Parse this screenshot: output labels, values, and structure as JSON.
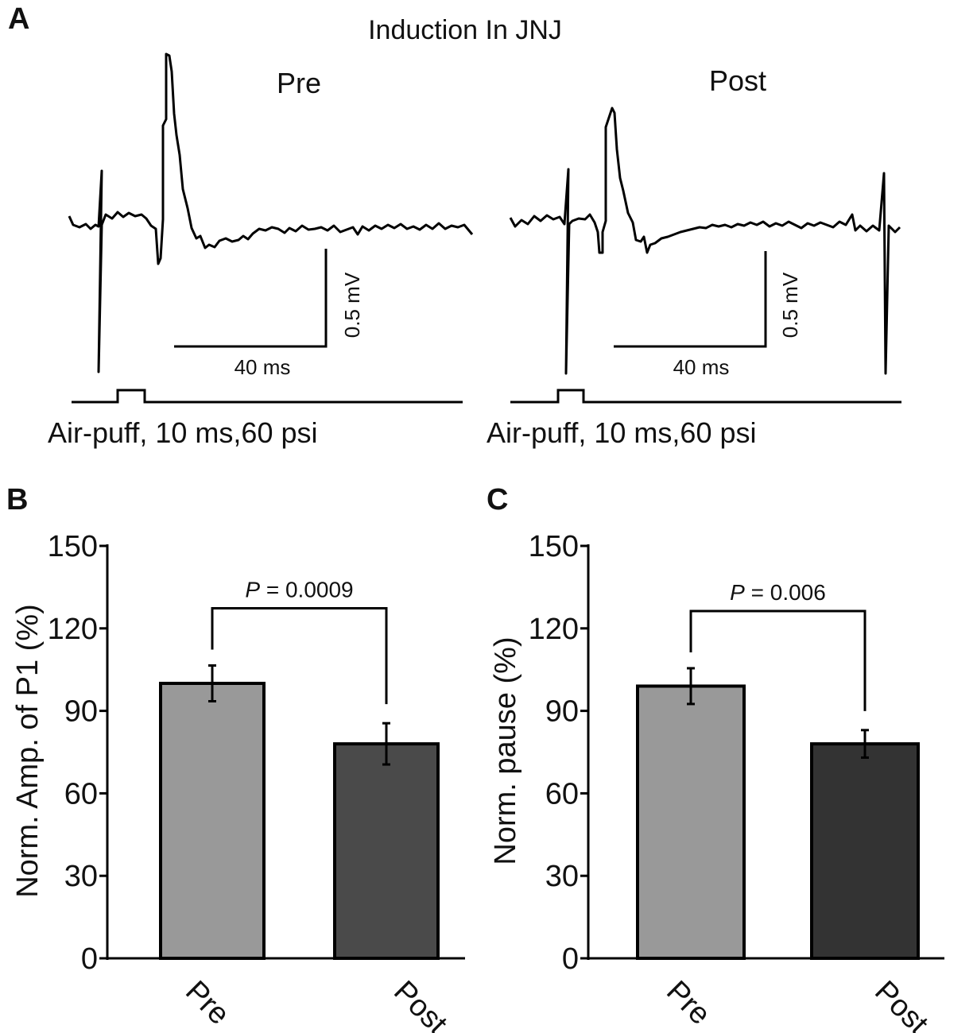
{
  "panel_a": {
    "letter": "A",
    "title": "Induction In JNJ",
    "traces": [
      {
        "label": "Pre",
        "scale_y_label": "0.5 mV",
        "scale_x_label": "40 ms",
        "stimulus_label": "Air-puff, 10 ms,60 psi"
      },
      {
        "label": "Post",
        "scale_y_label": "0.5 mV",
        "scale_x_label": "40 ms",
        "stimulus_label": "Air-puff, 10 ms,60 psi"
      }
    ]
  },
  "chart_data": [
    {
      "panel": "B",
      "type": "bar",
      "categories": [
        "Pre",
        "Post"
      ],
      "values": [
        100,
        78
      ],
      "errors": [
        6.5,
        7.5
      ],
      "colors": [
        "#999999",
        "#4a4a4a"
      ],
      "ylabel": "Norm. Amp. of P1 (%)",
      "ylim": [
        0,
        150
      ],
      "yticks": [
        "0",
        "30",
        "60",
        "90",
        "120",
        "150"
      ],
      "significance": {
        "text_italic": "P",
        "text_rest": " = 0.0009"
      }
    },
    {
      "panel": "C",
      "type": "bar",
      "categories": [
        "Pre",
        "Post"
      ],
      "values": [
        99,
        78
      ],
      "errors": [
        6.5,
        5
      ],
      "colors": [
        "#999999",
        "#333333"
      ],
      "ylabel": "Norm. pause (%)",
      "ylim": [
        0,
        150
      ],
      "yticks": [
        "0",
        "30",
        "60",
        "90",
        "120",
        "150"
      ],
      "significance": {
        "text_italic": "P",
        "text_rest": " = 0.006"
      }
    }
  ]
}
